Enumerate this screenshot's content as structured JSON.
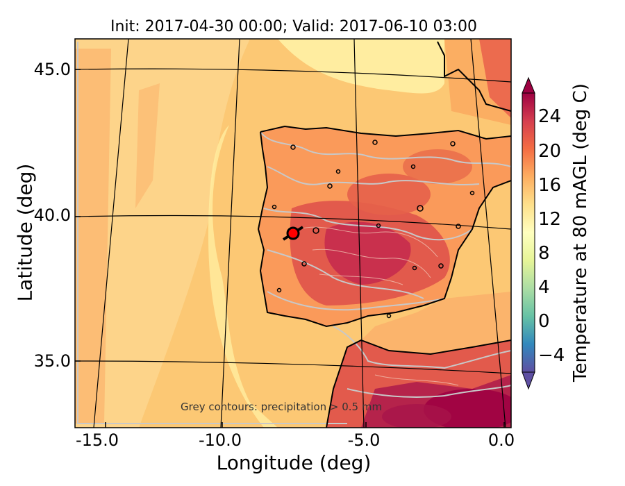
{
  "title": "Init: 2017-04-30 00:00; Valid: 2017-06-10 03:00",
  "axes": {
    "xlabel": "Longitude (deg)",
    "ylabel": "Latitude (deg)",
    "xticks": [
      "-15.0",
      "-10.0",
      "-5.0",
      "0.0"
    ],
    "yticks": [
      "45.0",
      "40.0",
      "35.0"
    ],
    "xlim": [
      -16.2,
      0.4
    ],
    "ylim": [
      32.7,
      46.1
    ]
  },
  "colorbar": {
    "label": "Temperature at 80 mAGL (deg C)",
    "ticks": [
      "−4",
      "0",
      "4",
      "8",
      "12",
      "16",
      "20",
      "24"
    ],
    "range": [
      -6,
      27
    ],
    "extend": "both",
    "colormap": [
      "#5e4fa2",
      "#3288bd",
      "#66c2a5",
      "#abdda4",
      "#e6f598",
      "#ffffbf",
      "#fee08b",
      "#fdae61",
      "#f46d43",
      "#d53e4f",
      "#9e0142"
    ]
  },
  "annotation": "Grey contours: precipitation > 0.5 mm",
  "marker": {
    "lon": -7.6,
    "lat": 39.4,
    "color": "#ff0000"
  },
  "colors": {
    "ocean_warm": "#fcc874",
    "ocean_mid": "#fdd88a",
    "cool_band": "#fff3b0",
    "land_hot": "#db4a4f",
    "land_very_hot": "#b01a4a",
    "precip_contour": "#c8c8c8",
    "coastline": "#000000"
  }
}
